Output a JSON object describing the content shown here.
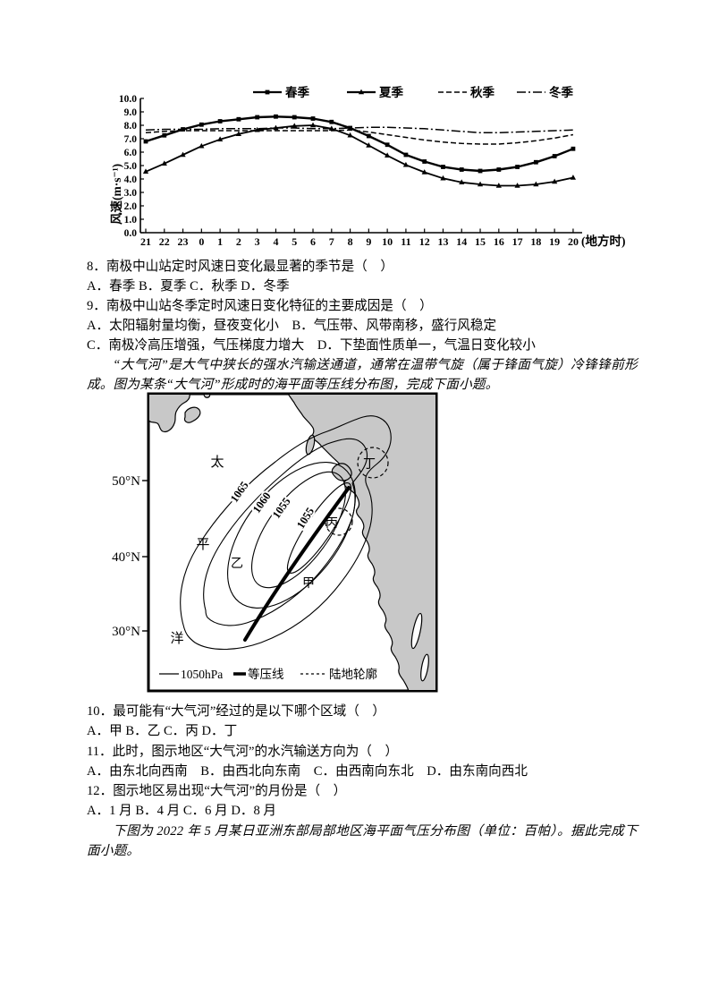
{
  "chart_data": {
    "type": "line",
    "title": "",
    "xlabel": "(地方时)",
    "ylabel": "风速(m·s⁻¹)",
    "ylim": [
      0,
      10
    ],
    "ytick_step": 1.0,
    "grid": false,
    "legend_position": "top",
    "x_categories": [
      "21",
      "22",
      "23",
      "0",
      "1",
      "2",
      "3",
      "4",
      "5",
      "6",
      "7",
      "8",
      "9",
      "10",
      "11",
      "12",
      "13",
      "14",
      "15",
      "16",
      "17",
      "18",
      "19",
      "20"
    ],
    "series": [
      {
        "name": "春季",
        "marker": "square",
        "dash": "solid",
        "values": [
          6.8,
          7.25,
          7.7,
          8.05,
          8.3,
          8.45,
          8.6,
          8.65,
          8.6,
          8.5,
          8.25,
          7.8,
          7.2,
          6.55,
          5.8,
          5.3,
          4.9,
          4.7,
          4.6,
          4.7,
          4.9,
          5.25,
          5.7,
          6.25
        ]
      },
      {
        "name": "夏季",
        "marker": "triangle",
        "dash": "solid",
        "values": [
          4.55,
          5.15,
          5.8,
          6.45,
          6.95,
          7.35,
          7.65,
          7.8,
          7.95,
          8.0,
          7.75,
          7.25,
          6.5,
          5.75,
          5.05,
          4.5,
          4.05,
          3.75,
          3.6,
          3.5,
          3.5,
          3.6,
          3.8,
          4.1
        ]
      },
      {
        "name": "秋季",
        "marker": "none",
        "dash": "dashed",
        "values": [
          7.45,
          7.55,
          7.6,
          7.6,
          7.6,
          7.6,
          7.6,
          7.6,
          7.6,
          7.6,
          7.6,
          7.65,
          7.5,
          7.3,
          7.1,
          6.9,
          6.75,
          6.65,
          6.6,
          6.6,
          6.7,
          6.85,
          7.05,
          7.3
        ]
      },
      {
        "name": "冬季",
        "marker": "none",
        "dash": "dashdot",
        "values": [
          7.65,
          7.7,
          7.7,
          7.7,
          7.75,
          7.75,
          7.75,
          7.8,
          7.8,
          7.75,
          7.75,
          7.8,
          7.85,
          7.85,
          7.8,
          7.75,
          7.65,
          7.55,
          7.45,
          7.45,
          7.5,
          7.55,
          7.6,
          7.65
        ]
      }
    ]
  },
  "questions": {
    "q8": {
      "stem": "8．南极中山站定时风速日变化最显著的季节是（　）",
      "options": "A．春季 B．夏季 C．秋季 D．冬季"
    },
    "q9": {
      "stem": "9．南极中山站冬季定时风速日变化特征的主要成因是（　）",
      "options_ab": "A．太阳辐射量均衡，昼夜变化小　B．气压带、风带南移，盛行风稳定",
      "options_cd": "C．南极冷高压增强，气压梯度力增大　D．下垫面性质单一，气温日变化较小"
    },
    "q10": {
      "stem": "10．最可能有“大气河”经过的是以下哪个区域（　）",
      "options": "A．甲 B．乙 C．丙 D．丁"
    },
    "q11": {
      "stem": "11．此时，图示地区“大气河”的水汽输送方向为（　）",
      "options": "A．由东北向西南　B．由西北向东南　C．由西南向东北　D．由东南向西北"
    },
    "q12": {
      "stem": "12．图示地区易出现“大气河”的月份是（　）",
      "options": "A．1 月 B．4 月 C．6 月 D．8 月"
    }
  },
  "passages": {
    "atmospheric_river": "“大气河”是大气中狭长的强水汽输送通道，通常在温带气旋（属于锋面气旋）冷锋锋前形成。图为某条“大气河”形成时的海平面等压线分布图，完成下面小题。",
    "asia_pressure": "下图为 2022 年 5 月某日亚洲东部局部地区海平面气压分布图（单位：百帕）。据此完成下面小题。"
  },
  "map": {
    "latitudes": [
      "50°N",
      "40°N",
      "30°N"
    ],
    "ocean_label": [
      "太",
      "平",
      "洋"
    ],
    "isobar_labels": [
      "1065",
      "1060",
      "1055",
      "1055"
    ],
    "points": {
      "jia": "甲",
      "yi": "乙",
      "bing": "丙",
      "ding": "丁"
    },
    "legend": {
      "isobar_value": "1050hPa",
      "isobar_label": "等压线",
      "land_label": "陆地轮廓"
    },
    "land_color": "#c8c8c8"
  }
}
